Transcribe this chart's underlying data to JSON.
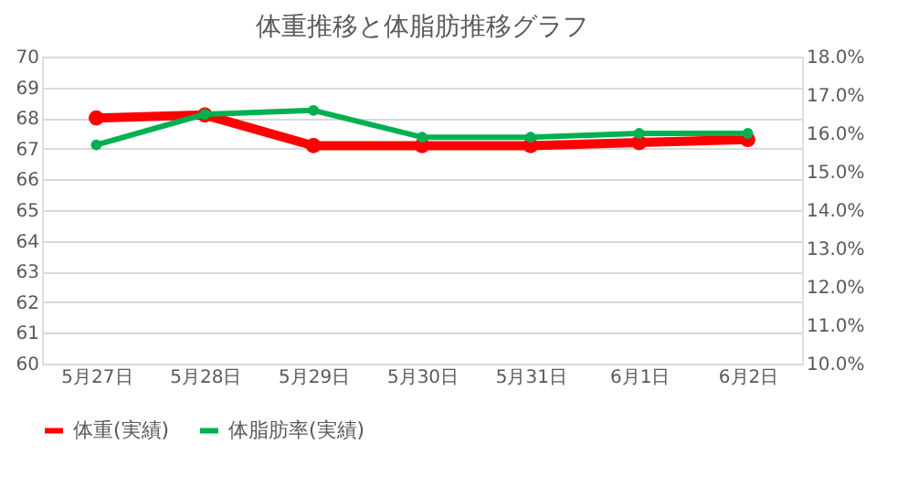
{
  "chart_data": {
    "type": "line",
    "title": "体重推移と体脂肪推移グラフ",
    "categories": [
      "5月27日",
      "5月28日",
      "5月29日",
      "5月30日",
      "5月31日",
      "6月1日",
      "6月2日"
    ],
    "series": [
      {
        "name": "体重(実績)",
        "color": "#ff0000",
        "values": [
          68.0,
          68.1,
          67.1,
          67.1,
          67.1,
          67.2,
          67.3
        ]
      },
      {
        "name": "体脂肪率(実績)",
        "color": "#00b050",
        "values": [
          15.7,
          16.5,
          16.6,
          15.9,
          15.9,
          16.0,
          16.0
        ],
        "axis": "y2"
      }
    ],
    "ylim": [
      60,
      70
    ],
    "yticks": [
      60,
      61,
      62,
      63,
      64,
      65,
      66,
      67,
      68,
      69,
      70
    ],
    "y2lim": [
      10,
      18
    ],
    "y2ticks": [
      {
        "value": 10,
        "label": "10.0%"
      },
      {
        "value": 11,
        "label": "11.0%"
      },
      {
        "value": 12,
        "label": "12.0%"
      },
      {
        "value": 13,
        "label": "13.0%"
      },
      {
        "value": 14,
        "label": "14.0%"
      },
      {
        "value": 15,
        "label": "15.0%"
      },
      {
        "value": 16,
        "label": "16.0%"
      },
      {
        "value": 17,
        "label": "17.0%"
      },
      {
        "value": 18,
        "label": "18.0%"
      }
    ],
    "grid": "y",
    "legend": "bottom",
    "marker": "circle",
    "line_style": "solid"
  }
}
